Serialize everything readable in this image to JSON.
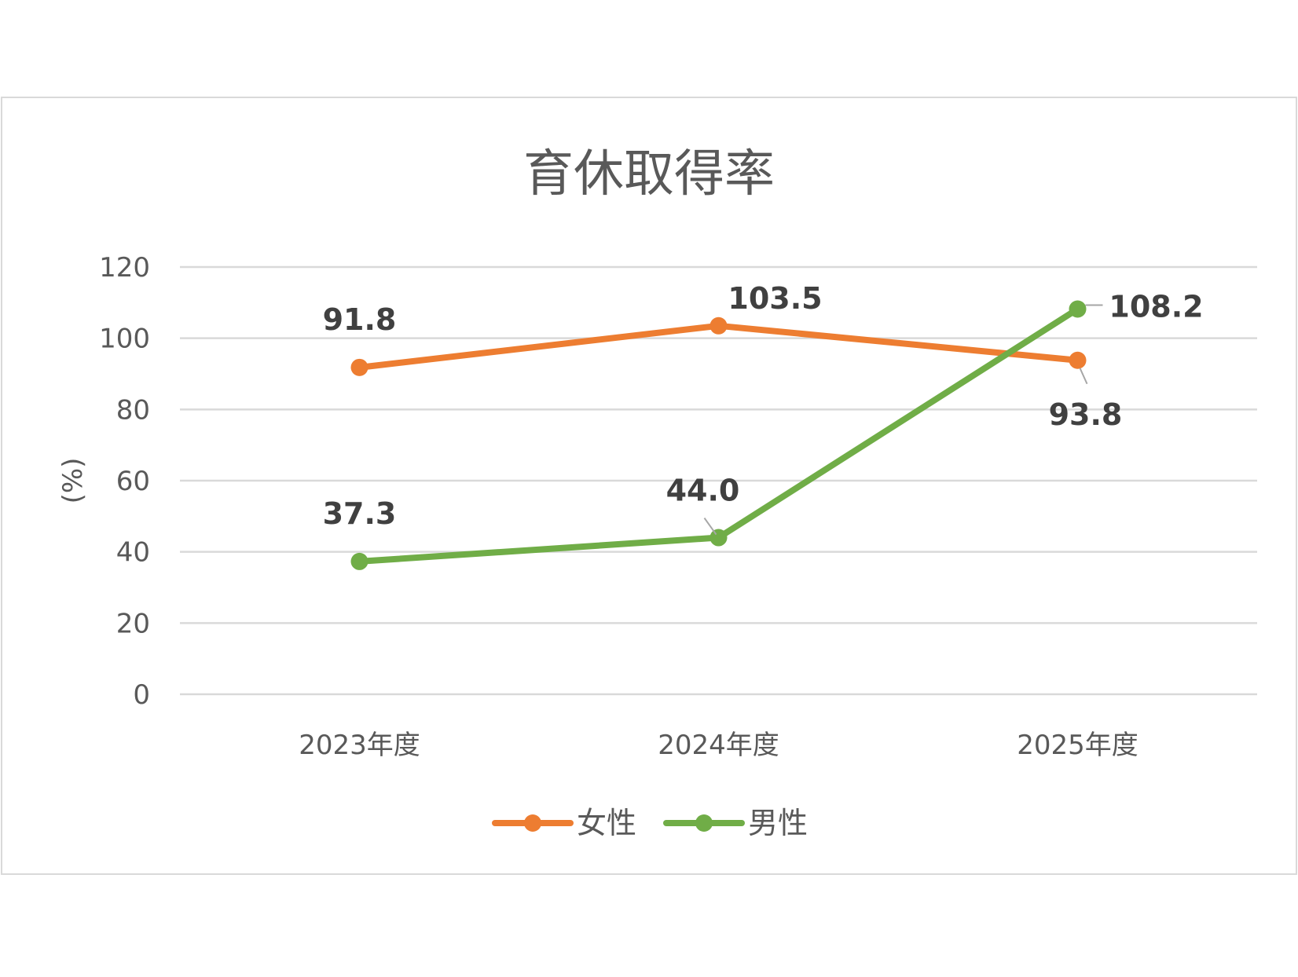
{
  "chart_data": {
    "type": "line",
    "title": "育休取得率",
    "ylabel": "(%)",
    "xlabel": "",
    "categories": [
      "2023年度",
      "2024年度",
      "2025年度"
    ],
    "ylim": [
      0,
      120
    ],
    "yticks": [
      0,
      20,
      40,
      60,
      80,
      100,
      120
    ],
    "grid": true,
    "legend_position": "bottom",
    "series": [
      {
        "name": "女性",
        "values": [
          91.8,
          103.5,
          93.8
        ],
        "labels": [
          "91.8",
          "103.5",
          "93.8"
        ],
        "color": "#ED7D31"
      },
      {
        "name": "男性",
        "values": [
          37.3,
          44.0,
          108.2
        ],
        "labels": [
          "37.3",
          "44.0",
          "108.2"
        ],
        "color": "#70AD47"
      }
    ]
  }
}
